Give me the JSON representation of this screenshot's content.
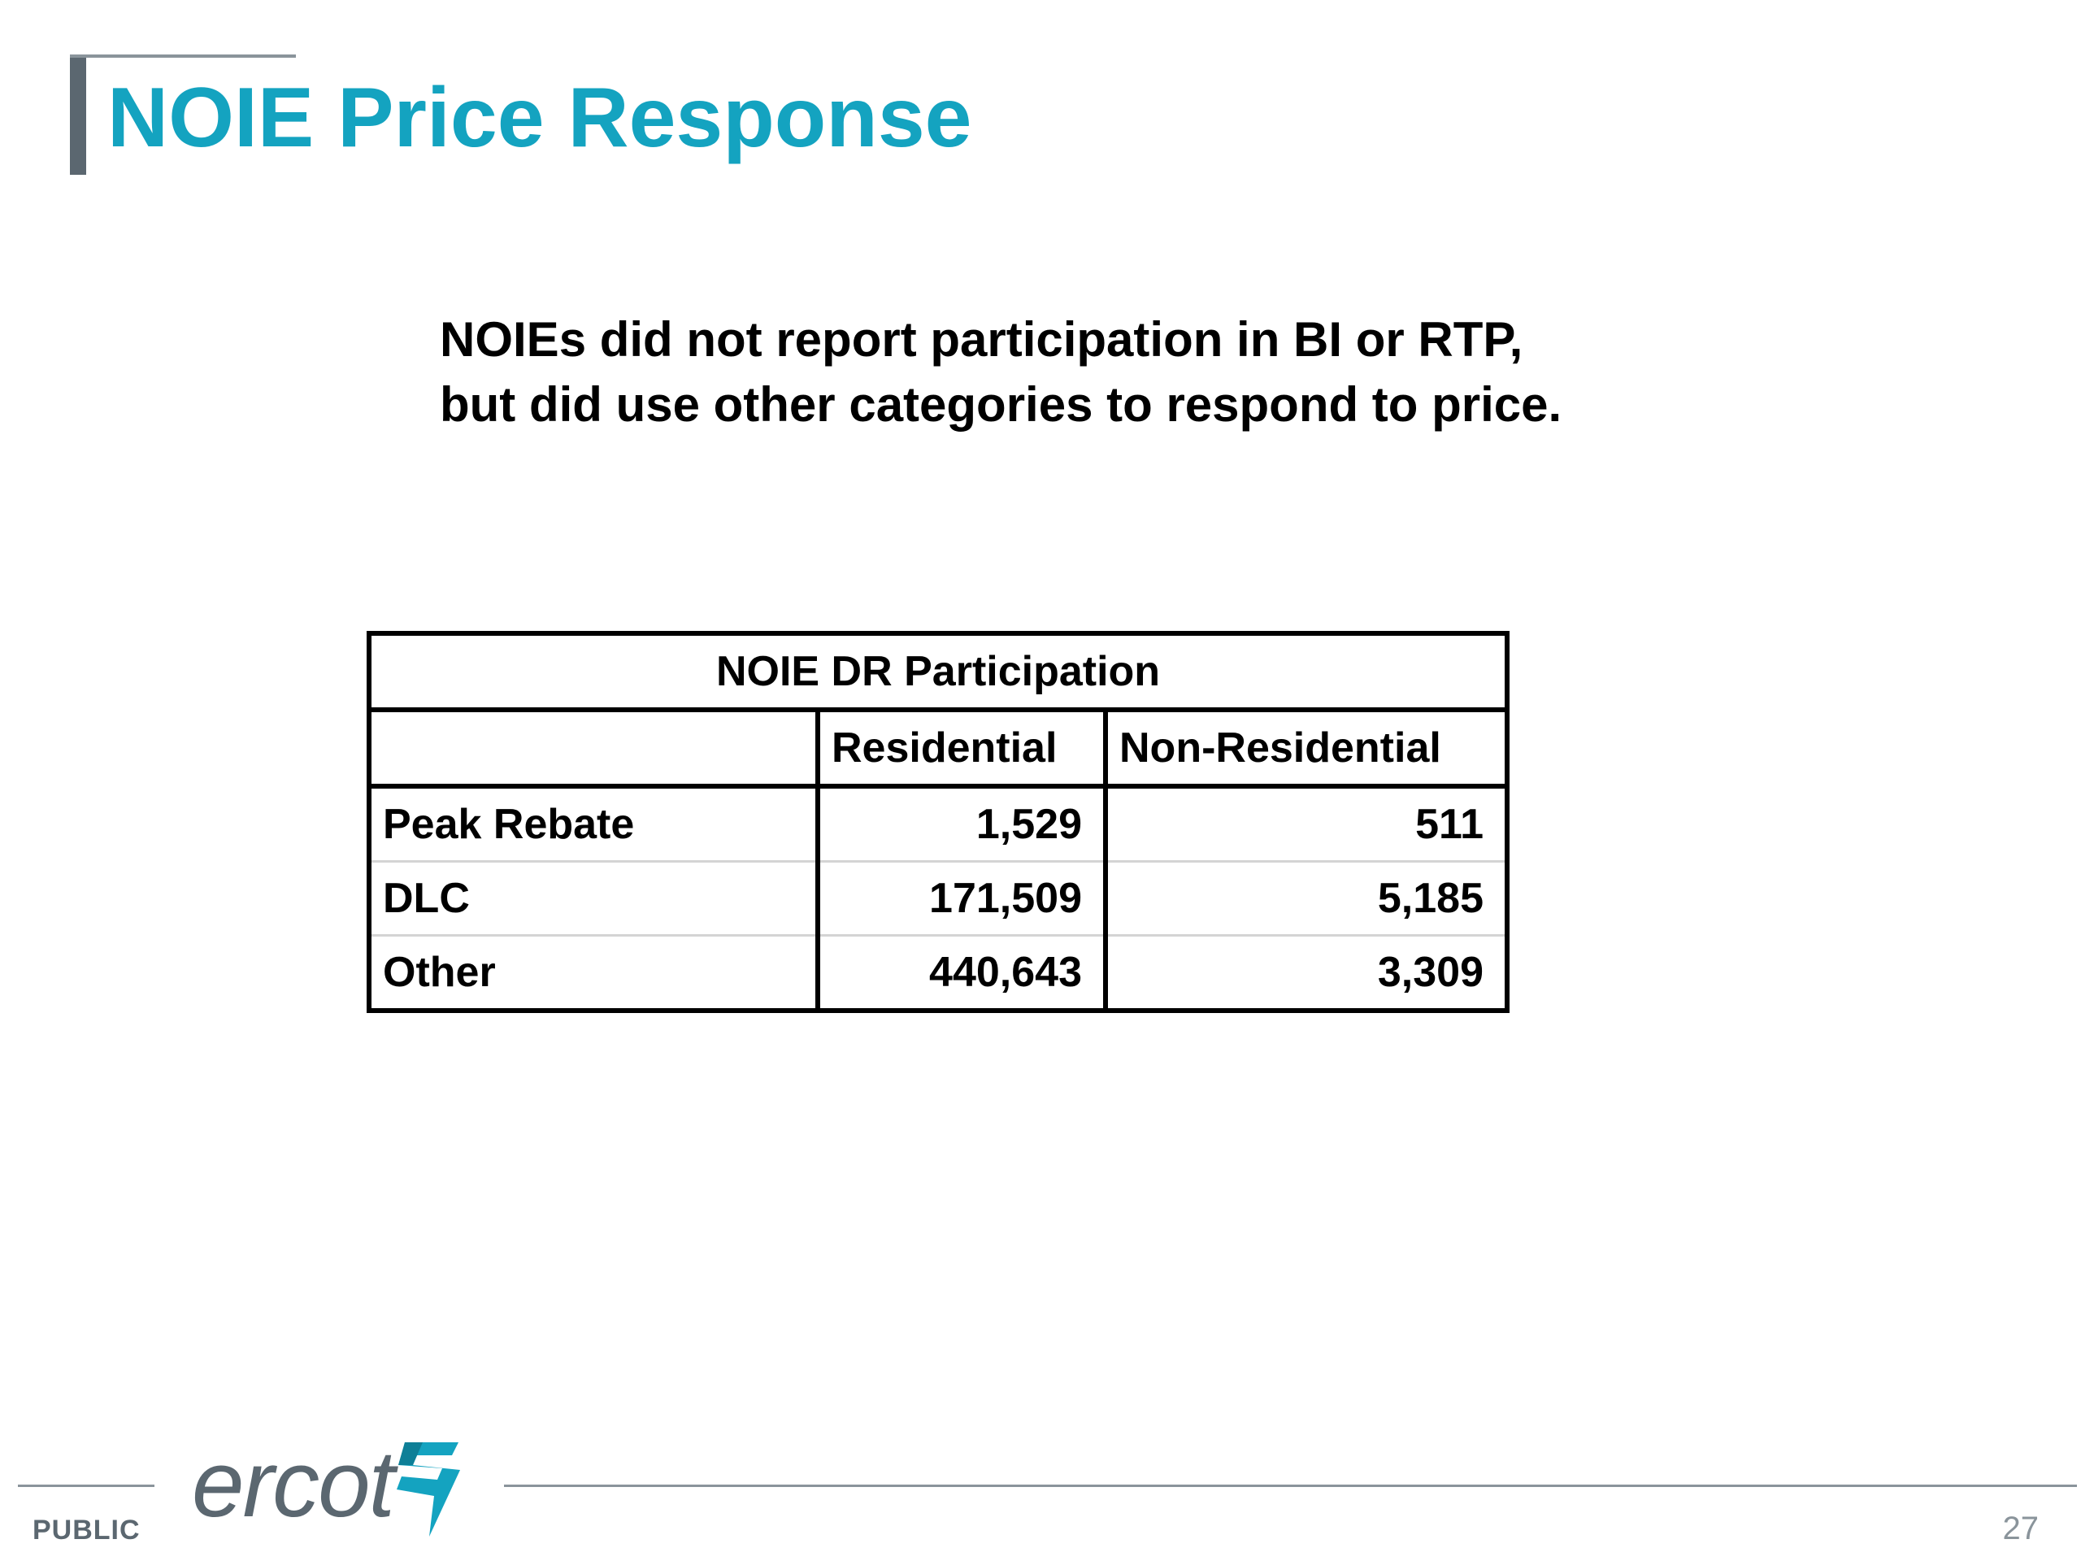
{
  "slide": {
    "title": "NOIE Price Response",
    "subtitle_lines": [
      "NOIEs did not report participation in BI or RTP,",
      "but did use other categories to respond to price."
    ]
  },
  "table": {
    "caption": "NOIE DR Participation",
    "columns": [
      "",
      "Residential",
      "Non-Residential"
    ],
    "rows": [
      {
        "label": "Peak Rebate",
        "residential": "1,529",
        "non_residential": "511"
      },
      {
        "label": "DLC",
        "residential": "171,509",
        "non_residential": "5,185"
      },
      {
        "label": "Other",
        "residential": "440,643",
        "non_residential": "3,309"
      }
    ]
  },
  "footer": {
    "classification": "PUBLIC",
    "page_number": "27",
    "logo_text": "ercot",
    "logo_icon": "ercot-lightning-icon"
  },
  "colors": {
    "title": "#14a3c0",
    "logo_gray": "#5b6770",
    "logo_accent": "#14a3c0",
    "rule": "#8a949b"
  }
}
